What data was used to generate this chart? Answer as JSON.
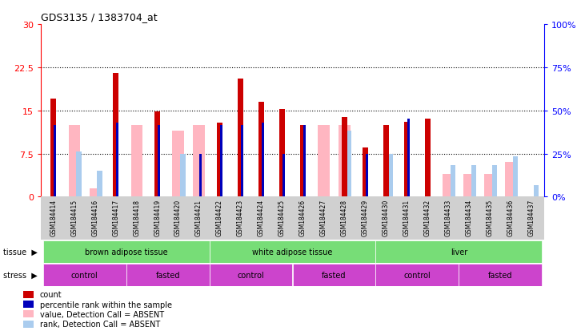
{
  "title": "GDS3135 / 1383704_at",
  "samples": [
    "GSM184414",
    "GSM184415",
    "GSM184416",
    "GSM184417",
    "GSM184418",
    "GSM184419",
    "GSM184420",
    "GSM184421",
    "GSM184422",
    "GSM184423",
    "GSM184424",
    "GSM184425",
    "GSM184426",
    "GSM184427",
    "GSM184428",
    "GSM184429",
    "GSM184430",
    "GSM184431",
    "GSM184432",
    "GSM184433",
    "GSM184434",
    "GSM184435",
    "GSM184436",
    "GSM184437"
  ],
  "red_bars": [
    17.0,
    0,
    0,
    21.5,
    0,
    14.8,
    0,
    0,
    12.8,
    20.5,
    16.5,
    15.2,
    12.5,
    0,
    13.8,
    8.5,
    12.5,
    13.0,
    13.5,
    0,
    0,
    0,
    0,
    0
  ],
  "blue_bars": [
    12.5,
    0,
    0,
    12.8,
    0,
    12.5,
    0,
    7.5,
    12.5,
    12.5,
    12.8,
    7.5,
    12.5,
    0,
    0,
    7.5,
    0,
    13.5,
    0,
    0,
    0,
    0,
    0,
    0
  ],
  "pink_bars": [
    0,
    12.5,
    1.5,
    0,
    12.5,
    0,
    11.5,
    12.5,
    0,
    0,
    0,
    0,
    0,
    12.5,
    12.5,
    0,
    0,
    0,
    0,
    4.0,
    4.0,
    4.0,
    6.0,
    0
  ],
  "lightblue_bars": [
    0,
    7.8,
    4.5,
    0,
    0,
    0,
    7.5,
    0,
    0,
    0,
    0,
    0,
    0,
    0,
    11.5,
    0,
    7.5,
    0,
    0,
    5.5,
    5.5,
    5.5,
    7.0,
    2.0
  ],
  "ylim_left": [
    0,
    30
  ],
  "ylim_right": [
    0,
    100
  ],
  "yticks_left": [
    0,
    7.5,
    15,
    22.5,
    30
  ],
  "yticks_right": [
    0,
    25,
    50,
    75,
    100
  ],
  "red_color": "#CC0000",
  "blue_color": "#0000BB",
  "pink_color": "#FFB6C1",
  "lightblue_color": "#AACCEE",
  "green_color": "#77DD77",
  "purple_color": "#CC44CC",
  "tissue_groups": [
    {
      "label": "brown adipose tissue",
      "start": 0,
      "end": 8
    },
    {
      "label": "white adipose tissue",
      "start": 8,
      "end": 16
    },
    {
      "label": "liver",
      "start": 16,
      "end": 24
    }
  ],
  "stress_groups": [
    {
      "label": "control",
      "start": 0,
      "end": 4
    },
    {
      "label": "fasted",
      "start": 4,
      "end": 8
    },
    {
      "label": "control",
      "start": 8,
      "end": 12
    },
    {
      "label": "fasted",
      "start": 12,
      "end": 16
    },
    {
      "label": "control",
      "start": 16,
      "end": 20
    },
    {
      "label": "fasted",
      "start": 20,
      "end": 24
    }
  ]
}
